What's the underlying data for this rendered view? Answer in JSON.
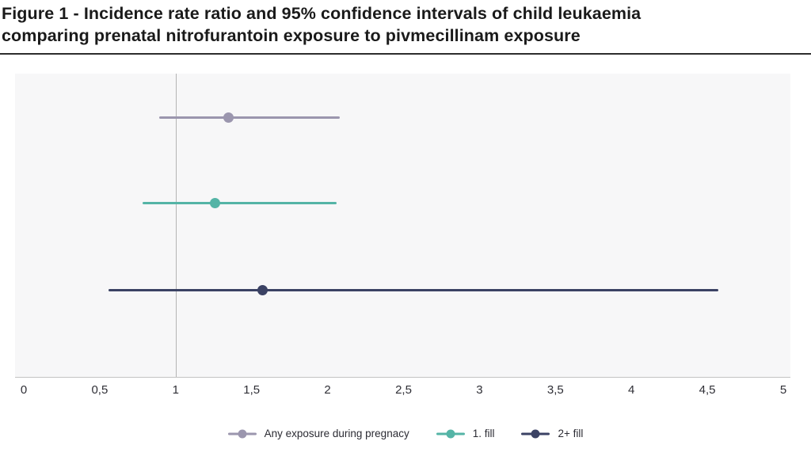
{
  "header": {
    "title_line1": "Figure 1 - Incidence rate ratio and 95% confidence intervals of child leukaemia",
    "title_line2": "comparing prenatal nitrofurantoin exposure to pivmecillinam exposure"
  },
  "chart_data": {
    "type": "scatter",
    "style": "forest-plot-horizontal-ci",
    "title": "Figure 1 - Incidence rate ratio and 95% confidence intervals of child leukaemia comparing prenatal nitrofurantoin exposure to pivmecillinam exposure",
    "xlabel": "",
    "ylabel": "",
    "xlim": [
      0,
      5
    ],
    "x_tick_values": [
      0,
      0.5,
      1,
      1.5,
      2,
      2.5,
      3,
      3.5,
      4,
      4.5,
      5
    ],
    "x_tick_labels": [
      "0",
      "0,5",
      "1",
      "1,5",
      "2",
      "2,5",
      "3",
      "3,5",
      "4",
      "4,5",
      "5"
    ],
    "decimal_separator": ",",
    "reference_line_x": 1,
    "grid": false,
    "legend_position": "bottom",
    "plot_background": "#f7f7f8",
    "reference_line_color": "#b4b4b4",
    "axis_line_color": "#c3c3c3",
    "series": [
      {
        "name": "Any exposure during pregnacy",
        "irr": 1.35,
        "ci_low": 0.89,
        "ci_high": 2.08,
        "color": "#9b96ae"
      },
      {
        "name": "1. fill",
        "irr": 1.26,
        "ci_low": 0.78,
        "ci_high": 2.06,
        "color": "#54b4a6"
      },
      {
        "name": "2+ fill",
        "irr": 1.57,
        "ci_low": 0.56,
        "ci_high": 4.57,
        "color": "#3b4264"
      }
    ],
    "row_fractions": [
      0.146,
      0.428,
      0.715
    ]
  }
}
